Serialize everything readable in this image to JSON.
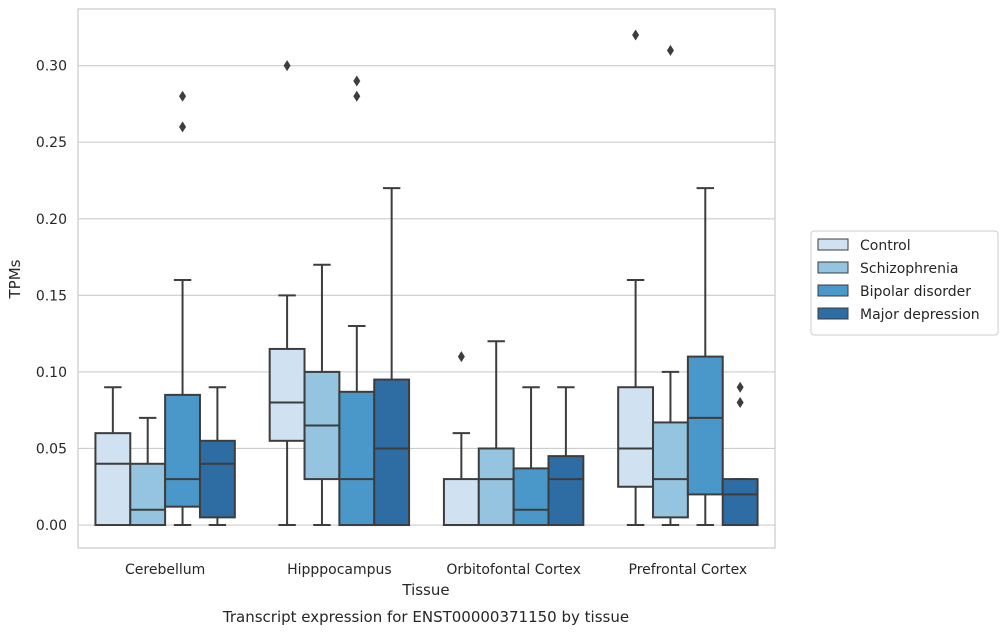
{
  "caption": "Transcript expression for ENST00000371150 by tissue",
  "chart_data": {
    "type": "box",
    "title": "",
    "xlabel": "Tissue",
    "ylabel": "TPMs",
    "ylim": [
      -0.015,
      0.337
    ],
    "yticks": [
      "0.00",
      "0.05",
      "0.10",
      "0.15",
      "0.20",
      "0.25",
      "0.30"
    ],
    "grid": true,
    "legend_position": "right",
    "categories": [
      "Cerebellum",
      "Hipppocampus",
      "Orbitofontal Cortex",
      "Prefrontal Cortex"
    ],
    "series": [
      {
        "name": "Control",
        "color": "#d0e1f2",
        "boxes": [
          {
            "whislo": 0.0,
            "q1": 0.0,
            "med": 0.04,
            "q3": 0.06,
            "whishi": 0.09,
            "fliers": []
          },
          {
            "whislo": 0.0,
            "q1": 0.055,
            "med": 0.08,
            "q3": 0.115,
            "whishi": 0.15,
            "fliers": [
              0.3
            ]
          },
          {
            "whislo": 0.0,
            "q1": 0.0,
            "med": 0.0,
            "q3": 0.03,
            "whishi": 0.06,
            "fliers": [
              0.11
            ]
          },
          {
            "whislo": 0.0,
            "q1": 0.025,
            "med": 0.05,
            "q3": 0.09,
            "whishi": 0.16,
            "fliers": [
              0.32
            ]
          }
        ]
      },
      {
        "name": "Schizophrenia",
        "color": "#94c4df",
        "boxes": [
          {
            "whislo": 0.0,
            "q1": 0.0,
            "med": 0.01,
            "q3": 0.04,
            "whishi": 0.07,
            "fliers": []
          },
          {
            "whislo": 0.0,
            "q1": 0.03,
            "med": 0.065,
            "q3": 0.1,
            "whishi": 0.17,
            "fliers": []
          },
          {
            "whislo": 0.0,
            "q1": 0.0,
            "med": 0.03,
            "q3": 0.05,
            "whishi": 0.12,
            "fliers": []
          },
          {
            "whislo": 0.0,
            "q1": 0.005,
            "med": 0.03,
            "q3": 0.067,
            "whishi": 0.1,
            "fliers": [
              0.31
            ]
          }
        ]
      },
      {
        "name": "Bipolar disorder",
        "color": "#4a98c9",
        "boxes": [
          {
            "whislo": 0.0,
            "q1": 0.012,
            "med": 0.03,
            "q3": 0.085,
            "whishi": 0.16,
            "fliers": [
              0.26,
              0.28
            ]
          },
          {
            "whislo": 0.0,
            "q1": 0.0,
            "med": 0.03,
            "q3": 0.087,
            "whishi": 0.13,
            "fliers": [
              0.28,
              0.29
            ]
          },
          {
            "whislo": 0.0,
            "q1": 0.0,
            "med": 0.01,
            "q3": 0.037,
            "whishi": 0.09,
            "fliers": []
          },
          {
            "whislo": 0.0,
            "q1": 0.02,
            "med": 0.07,
            "q3": 0.11,
            "whishi": 0.22,
            "fliers": []
          }
        ]
      },
      {
        "name": "Major depression",
        "color": "#2e6da4",
        "boxes": [
          {
            "whislo": 0.0,
            "q1": 0.005,
            "med": 0.04,
            "q3": 0.055,
            "whishi": 0.09,
            "fliers": []
          },
          {
            "whislo": 0.0,
            "q1": 0.0,
            "med": 0.05,
            "q3": 0.095,
            "whishi": 0.22,
            "fliers": []
          },
          {
            "whislo": 0.0,
            "q1": 0.0,
            "med": 0.03,
            "q3": 0.045,
            "whishi": 0.09,
            "fliers": []
          },
          {
            "whislo": 0.0,
            "q1": 0.0,
            "med": 0.02,
            "q3": 0.03,
            "whishi": 0.03,
            "fliers": [
              0.08,
              0.09
            ]
          }
        ]
      }
    ]
  }
}
